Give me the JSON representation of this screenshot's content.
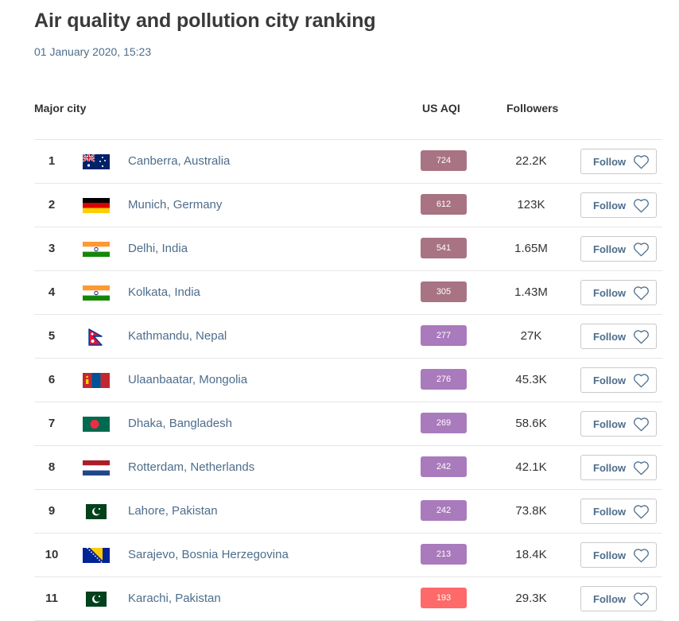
{
  "header": {
    "title": "Air quality and pollution city ranking",
    "timestamp": "01 January 2020, 15:23"
  },
  "columns": {
    "city": "Major city",
    "aqi": "US AQI",
    "followers": "Followers"
  },
  "colors": {
    "aqi_hazardous": "#a87383",
    "aqi_very_unhealthy": "#a97abc",
    "aqi_unhealthy": "#fe6a69",
    "link": "#4d6d8c"
  },
  "rows": [
    {
      "rank": "1",
      "flag_icon": "australia-flag",
      "city": "Canberra, Australia",
      "aqi": "724",
      "level": "hazardous",
      "followers": "22.2K",
      "follow_label": "Follow"
    },
    {
      "rank": "2",
      "flag_icon": "germany-flag",
      "city": "Munich, Germany",
      "aqi": "612",
      "level": "hazardous",
      "followers": "123K",
      "follow_label": "Follow"
    },
    {
      "rank": "3",
      "flag_icon": "india-flag",
      "city": "Delhi, India",
      "aqi": "541",
      "level": "hazardous",
      "followers": "1.65M",
      "follow_label": "Follow"
    },
    {
      "rank": "4",
      "flag_icon": "india-flag",
      "city": "Kolkata, India",
      "aqi": "305",
      "level": "hazardous",
      "followers": "1.43M",
      "follow_label": "Follow"
    },
    {
      "rank": "5",
      "flag_icon": "nepal-flag",
      "city": "Kathmandu, Nepal",
      "aqi": "277",
      "level": "very_unhealthy",
      "followers": "27K",
      "follow_label": "Follow"
    },
    {
      "rank": "6",
      "flag_icon": "mongolia-flag",
      "city": "Ulaanbaatar, Mongolia",
      "aqi": "276",
      "level": "very_unhealthy",
      "followers": "45.3K",
      "follow_label": "Follow"
    },
    {
      "rank": "7",
      "flag_icon": "bangladesh-flag",
      "city": "Dhaka, Bangladesh",
      "aqi": "269",
      "level": "very_unhealthy",
      "followers": "58.6K",
      "follow_label": "Follow"
    },
    {
      "rank": "8",
      "flag_icon": "netherlands-flag",
      "city": "Rotterdam, Netherlands",
      "aqi": "242",
      "level": "very_unhealthy",
      "followers": "42.1K",
      "follow_label": "Follow"
    },
    {
      "rank": "9",
      "flag_icon": "pakistan-flag",
      "city": "Lahore, Pakistan",
      "aqi": "242",
      "level": "very_unhealthy",
      "followers": "73.8K",
      "follow_label": "Follow"
    },
    {
      "rank": "10",
      "flag_icon": "bosnia-herzegovina-flag",
      "city": "Sarajevo, Bosnia Herzegovina",
      "aqi": "213",
      "level": "very_unhealthy",
      "followers": "18.4K",
      "follow_label": "Follow"
    },
    {
      "rank": "11",
      "flag_icon": "pakistan-flag",
      "city": "Karachi, Pakistan",
      "aqi": "193",
      "level": "unhealthy",
      "followers": "29.3K",
      "follow_label": "Follow"
    }
  ]
}
